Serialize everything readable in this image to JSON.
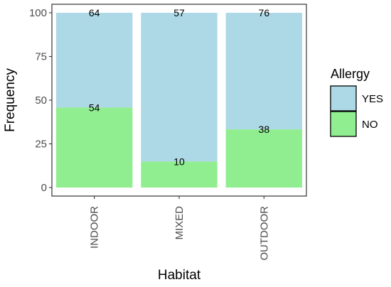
{
  "chart_data": {
    "type": "bar",
    "stacked": true,
    "normalized_percent": true,
    "categories": [
      "INDOOR",
      "MIXED",
      "OUTDOOR"
    ],
    "series": [
      {
        "name": "NO",
        "counts": [
          54,
          10,
          38
        ],
        "percent": [
          45.8,
          14.9,
          33.3
        ],
        "color": "#90EE90"
      },
      {
        "name": "YES",
        "counts": [
          64,
          57,
          76
        ],
        "percent": [
          54.2,
          85.1,
          66.7
        ],
        "color": "#ADD8E6"
      }
    ],
    "xlabel": "Habitat",
    "ylabel": "Frequency",
    "ylim": [
      0,
      100
    ],
    "yticks": [
      0,
      25,
      50,
      75,
      100
    ],
    "legend": {
      "title": "Allergy",
      "position": "right",
      "entries": [
        {
          "label": "YES",
          "color": "#ADD8E6"
        },
        {
          "label": "NO",
          "color": "#90EE90"
        }
      ]
    },
    "grid": false
  }
}
